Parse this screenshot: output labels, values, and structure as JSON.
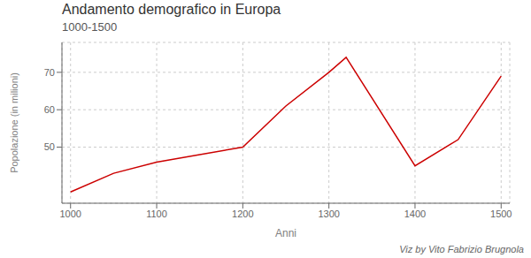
{
  "chart_data": {
    "type": "line",
    "title": "Andamento demografico in Europa",
    "subtitle": "1000-1500",
    "xlabel": "Anni",
    "ylabel": "Popolazione (in milioni)",
    "annotation": "Viz by Vito Fabrizio Brugnola",
    "x": [
      1000,
      1050,
      1100,
      1150,
      1200,
      1250,
      1300,
      1320,
      1400,
      1450,
      1500
    ],
    "values": [
      38,
      43,
      46,
      48,
      50,
      61,
      70,
      74,
      45,
      52,
      69
    ],
    "color": "#CC0000",
    "xlim": [
      990,
      1510
    ],
    "ylim": [
      35,
      78
    ],
    "xticks": [
      1000,
      1100,
      1200,
      1300,
      1400,
      1500
    ],
    "yticks": [
      50,
      60,
      70
    ],
    "grid": true
  }
}
